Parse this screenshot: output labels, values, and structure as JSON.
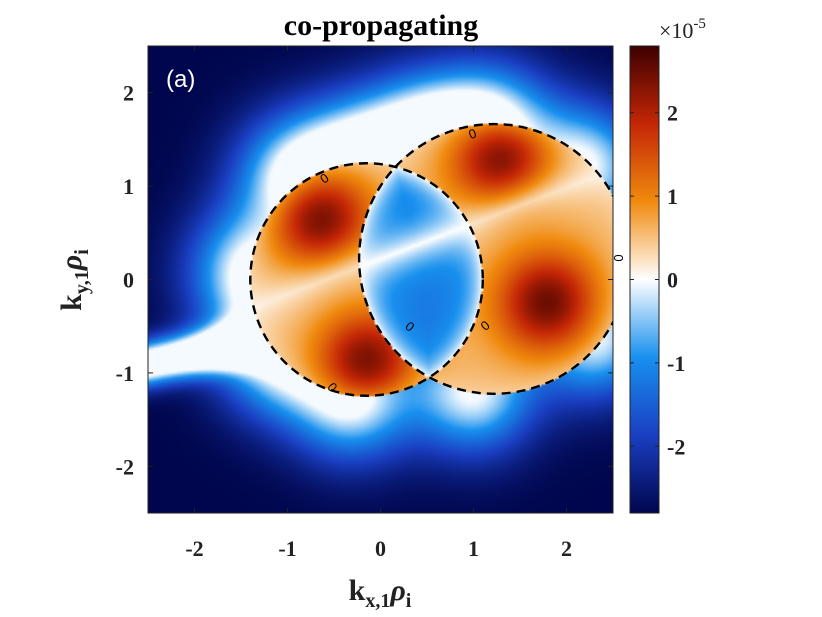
{
  "chart_data": {
    "type": "heatmap",
    "title": "co-propagating",
    "panel_label": "(a)",
    "xlabel": {
      "main": "k",
      "sub": "x,1",
      "rho": "ρ",
      "rho_sub": "i"
    },
    "ylabel": {
      "main": "k",
      "sub": "y,1",
      "rho": "ρ",
      "rho_sub": "i"
    },
    "xlim": [
      -2.5,
      2.5
    ],
    "ylim": [
      -2.5,
      2.5
    ],
    "xticks": [
      -2,
      -1,
      0,
      1,
      2
    ],
    "yticks": [
      -2,
      -1,
      0,
      1,
      2
    ],
    "xtick_labels": [
      "-2",
      "-1",
      "0",
      "1",
      "2"
    ],
    "ytick_labels": [
      "-2",
      "-1",
      "0",
      "1",
      "2"
    ],
    "colorbar": {
      "range": [
        -2.8,
        2.8
      ],
      "ticks": [
        -2,
        -1,
        0,
        1,
        2
      ],
      "tick_labels": [
        "-2",
        "-1",
        "0",
        "1",
        "2"
      ],
      "exponent_base": "×10",
      "exponent_power": "-5",
      "colormap": [
        "#00064d",
        "#1a3fc2",
        "#1890ee",
        "#ffffff",
        "#f08a0e",
        "#c42606",
        "#3d0000"
      ]
    },
    "zero_contours": [
      {
        "center": [
          -0.15,
          0.0
        ],
        "radius": 1.25,
        "style": "dashed"
      },
      {
        "center": [
          1.22,
          0.22
        ],
        "radius": 1.45,
        "style": "dashed"
      }
    ],
    "contour_labels": [
      "0",
      "0",
      "0",
      "0",
      "0",
      "0"
    ],
    "grid": false
  }
}
